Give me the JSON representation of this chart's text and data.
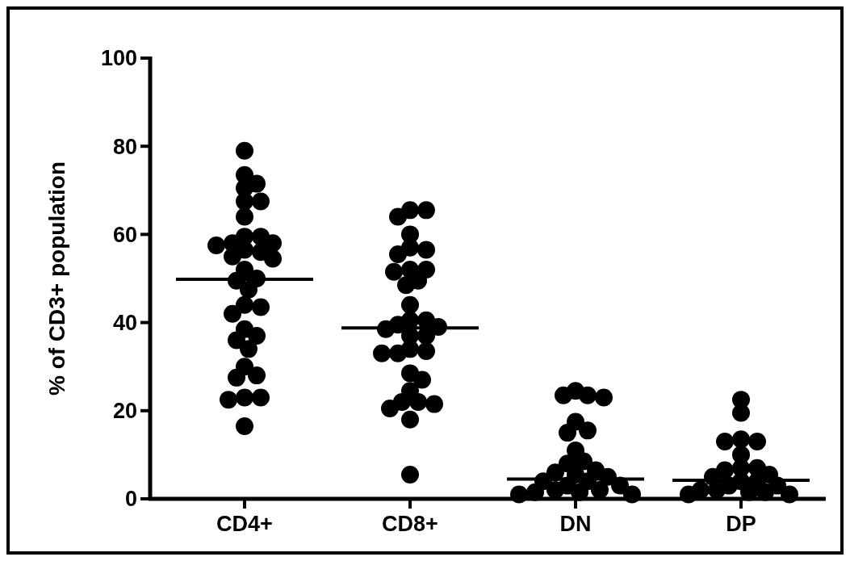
{
  "chart_data": {
    "type": "scatter",
    "ylabel": "% of CD3+ population",
    "categories": [
      "CD4+",
      "CD8+",
      "DN",
      "DP"
    ],
    "ylim": [
      0,
      100
    ],
    "yticks": [
      0,
      20,
      40,
      60,
      80,
      100
    ],
    "grid": false,
    "marker": "circle",
    "series": [
      {
        "color": "#000000",
        "x": [
          "CD4+",
          "CD4+",
          "CD4+",
          "CD4+",
          "CD4+",
          "CD4+",
          "CD4+",
          "CD4+",
          "CD4+",
          "CD4+",
          "CD4+",
          "CD4+",
          "CD4+",
          "CD4+",
          "CD4+",
          "CD4+",
          "CD4+",
          "CD4+",
          "CD4+",
          "CD4+",
          "CD4+",
          "CD4+",
          "CD4+",
          "CD4+",
          "CD4+",
          "CD4+",
          "CD4+",
          "CD4+",
          "CD4+",
          "CD4+",
          "CD4+",
          "CD4+",
          "CD4+",
          "CD4+",
          "CD8+",
          "CD8+",
          "CD8+",
          "CD8+",
          "CD8+",
          "CD8+",
          "CD8+",
          "CD8+",
          "CD8+",
          "CD8+",
          "CD8+",
          "CD8+",
          "CD8+",
          "CD8+",
          "CD8+",
          "CD8+",
          "CD8+",
          "CD8+",
          "CD8+",
          "CD8+",
          "CD8+",
          "CD8+",
          "CD8+",
          "CD8+",
          "CD8+",
          "CD8+",
          "CD8+",
          "CD8+",
          "CD8+",
          "CD8+",
          "CD8+",
          "CD8+",
          "CD8+",
          "DN",
          "DN",
          "DN",
          "DN",
          "DN",
          "DN",
          "DN",
          "DN",
          "DN",
          "DN",
          "DN",
          "DN",
          "DN",
          "DN",
          "DN",
          "DN",
          "DN",
          "DN",
          "DN",
          "DN",
          "DN",
          "DN",
          "DN",
          "DN",
          "DP",
          "DP",
          "DP",
          "DP",
          "DP",
          "DP",
          "DP",
          "DP",
          "DP",
          "DP",
          "DP",
          "DP",
          "DP",
          "DP",
          "DP",
          "DP",
          "DP",
          "DP",
          "DP",
          "DP",
          "DP"
        ],
        "values": [
          79,
          73.5,
          71.5,
          70.5,
          67.5,
          67.5,
          64,
          59.5,
          59.5,
          58,
          58,
          57.5,
          56.5,
          56,
          55,
          54.5,
          52,
          50,
          49.5,
          47.5,
          44,
          43.5,
          42,
          38.5,
          37,
          36,
          34,
          30,
          28,
          27.5,
          23,
          23,
          22.5,
          16.5,
          65.5,
          65.5,
          64,
          60,
          57,
          56.5,
          55.5,
          52,
          52,
          51.5,
          49.5,
          48.5,
          44,
          40.5,
          40.5,
          39.5,
          39,
          38.5,
          37,
          37,
          34,
          33.5,
          33,
          33,
          28.5,
          27,
          24.5,
          22,
          22,
          21.5,
          20.5,
          18,
          5.5,
          24.5,
          23.5,
          23.5,
          23,
          17.5,
          15.5,
          15,
          11,
          8.5,
          8,
          6.5,
          6,
          5.5,
          5,
          4,
          4,
          3,
          3,
          2,
          2,
          1.5,
          1.5,
          1,
          1,
          22.5,
          19.5,
          13.5,
          13,
          13,
          10,
          7,
          7,
          6.5,
          5.5,
          5,
          4,
          4,
          3,
          3,
          2,
          2,
          1.5,
          1.5,
          1,
          1
        ]
      },
      {
        "type": "box",
        "color": "#000000",
        "boxes": [
          {
            "low": 49.8,
            "q1": 49.8,
            "median": 49.8,
            "q3": 49.8,
            "high": 49.8
          },
          {
            "low": 38.8,
            "q1": 38.8,
            "median": 38.8,
            "q3": 38.8,
            "high": 38.8
          },
          {
            "low": 4.5,
            "q1": 4.5,
            "median": 4.5,
            "q3": 4.5,
            "high": 4.5
          },
          {
            "low": 4.2,
            "q1": 4.2,
            "median": 4.2,
            "q3": 4.2,
            "high": 4.2
          }
        ]
      }
    ]
  }
}
